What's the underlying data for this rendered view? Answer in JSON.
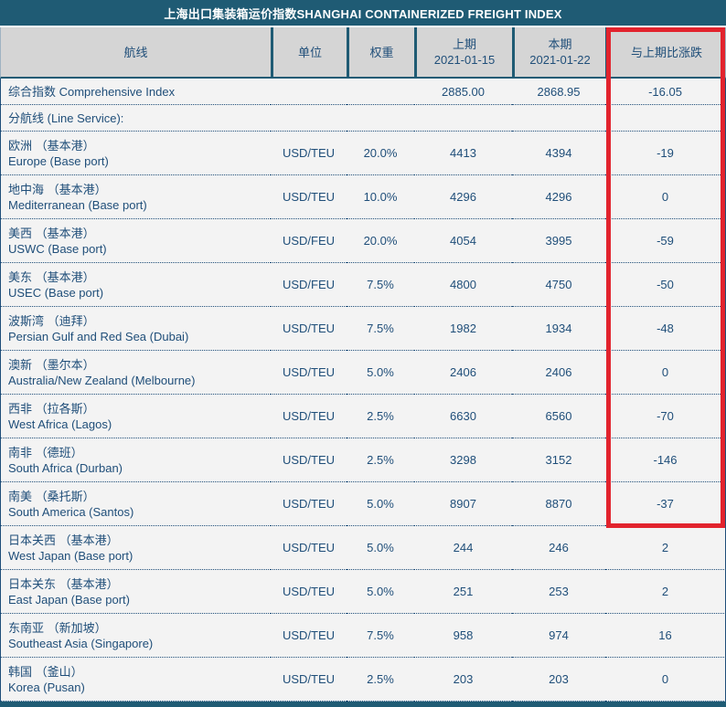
{
  "title": "上海出口集装箱运价指数SHANGHAI CONTAINERIZED FREIGHT INDEX",
  "colors": {
    "teal_bar": "#1F5B74",
    "header_bg": "#D5D5D5",
    "body_bg": "#F3F3F3",
    "text_blue": "#1F4E79",
    "highlight_red": "#E2232D"
  },
  "highlight": {
    "shape": "red-rectangle",
    "around_column": "与上期比涨跌",
    "covers_rows": "header through 南美 （桑托斯） South America (Santos)"
  },
  "table": {
    "headers": [
      {
        "id": "route",
        "label": "航线",
        "sub": ""
      },
      {
        "id": "unit",
        "label": "单位",
        "sub": ""
      },
      {
        "id": "weight",
        "label": "权重",
        "sub": ""
      },
      {
        "id": "prev",
        "label": "上期",
        "sub": "2021-01-15"
      },
      {
        "id": "curr",
        "label": "本期",
        "sub": "2021-01-22"
      },
      {
        "id": "change",
        "label": "与上期比涨跌",
        "sub": ""
      }
    ],
    "rows": [
      {
        "route_cn": "综合指数 Comprehensive Index",
        "route_en": "",
        "unit": "",
        "weight": "",
        "prev": "2885.00",
        "curr": "2868.95",
        "change": "-16.05"
      },
      {
        "route_cn": "分航线 (Line Service):",
        "route_en": "",
        "unit": "",
        "weight": "",
        "prev": "",
        "curr": "",
        "change": ""
      },
      {
        "route_cn": "欧洲 （基本港）",
        "route_en": "Europe (Base port)",
        "unit": "USD/TEU",
        "weight": "20.0%",
        "prev": "4413",
        "curr": "4394",
        "change": "-19"
      },
      {
        "route_cn": "地中海 （基本港）",
        "route_en": "Mediterranean (Base port)",
        "unit": "USD/TEU",
        "weight": "10.0%",
        "prev": "4296",
        "curr": "4296",
        "change": "0"
      },
      {
        "route_cn": "美西 （基本港）",
        "route_en": "USWC (Base port)",
        "unit": "USD/FEU",
        "weight": "20.0%",
        "prev": "4054",
        "curr": "3995",
        "change": "-59"
      },
      {
        "route_cn": "美东 （基本港）",
        "route_en": "USEC (Base port)",
        "unit": "USD/FEU",
        "weight": "7.5%",
        "prev": "4800",
        "curr": "4750",
        "change": "-50"
      },
      {
        "route_cn": "波斯湾 （迪拜）",
        "route_en": "Persian Gulf and Red Sea (Dubai)",
        "unit": "USD/TEU",
        "weight": "7.5%",
        "prev": "1982",
        "curr": "1934",
        "change": "-48"
      },
      {
        "route_cn": "澳新 （墨尔本）",
        "route_en": "Australia/New Zealand (Melbourne)",
        "unit": "USD/TEU",
        "weight": "5.0%",
        "prev": "2406",
        "curr": "2406",
        "change": "0"
      },
      {
        "route_cn": "西非 （拉各斯）",
        "route_en": "West Africa (Lagos)",
        "unit": "USD/TEU",
        "weight": "2.5%",
        "prev": "6630",
        "curr": "6560",
        "change": "-70"
      },
      {
        "route_cn": "南非 （德班）",
        "route_en": "South Africa (Durban)",
        "unit": "USD/TEU",
        "weight": "2.5%",
        "prev": "3298",
        "curr": "3152",
        "change": "-146"
      },
      {
        "route_cn": "南美 （桑托斯）",
        "route_en": "South America (Santos)",
        "unit": "USD/TEU",
        "weight": "5.0%",
        "prev": "8907",
        "curr": "8870",
        "change": "-37"
      },
      {
        "route_cn": "日本关西 （基本港）",
        "route_en": "West Japan (Base port)",
        "unit": "USD/TEU",
        "weight": "5.0%",
        "prev": "244",
        "curr": "246",
        "change": "2"
      },
      {
        "route_cn": "日本关东 （基本港）",
        "route_en": "East Japan (Base port)",
        "unit": "USD/TEU",
        "weight": "5.0%",
        "prev": "251",
        "curr": "253",
        "change": "2"
      },
      {
        "route_cn": "东南亚 （新加坡）",
        "route_en": "Southeast Asia (Singapore)",
        "unit": "USD/TEU",
        "weight": "7.5%",
        "prev": "958",
        "curr": "974",
        "change": "16"
      },
      {
        "route_cn": "韩国 （釜山）",
        "route_en": "Korea (Pusan)",
        "unit": "USD/TEU",
        "weight": "2.5%",
        "prev": "203",
        "curr": "203",
        "change": "0"
      }
    ]
  }
}
